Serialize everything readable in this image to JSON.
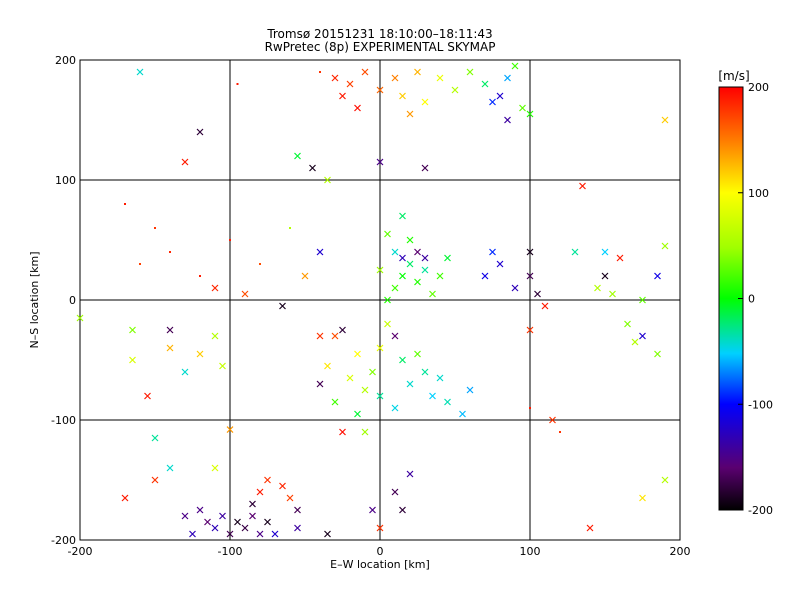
{
  "chart_data": {
    "type": "scatter",
    "title": "Tromsø 20151231 18:10:00–18:11:43",
    "subtitle": "RwPretec (8p) EXPERIMENTAL SKYMAP",
    "xlabel": "E–W location [km]",
    "ylabel": "N–S location [km]",
    "xlim": [
      -200,
      200
    ],
    "ylim": [
      -200,
      200
    ],
    "xticks": [
      -200,
      -100,
      0,
      100,
      200
    ],
    "yticks": [
      -200,
      -100,
      0,
      100,
      200
    ],
    "grid": true,
    "colorbar": {
      "label": "[m/s]",
      "range": [
        -200,
        200
      ],
      "ticks": [
        200,
        100,
        0,
        -100,
        -200
      ],
      "colormap": "rainbow: black (-200) → purple → blue (-100) → cyan → green (0) → yellow (100) → orange → red (200)"
    },
    "markers": [
      "x",
      "dot"
    ],
    "points": [
      {
        "x": -160,
        "y": 190,
        "v": -40,
        "m": "x"
      },
      {
        "x": -120,
        "y": 140,
        "v": -180,
        "m": "x"
      },
      {
        "x": -95,
        "y": 180,
        "v": 190,
        "m": "dot"
      },
      {
        "x": -40,
        "y": 190,
        "v": 180,
        "m": "dot"
      },
      {
        "x": -30,
        "y": 185,
        "v": 185,
        "m": "x"
      },
      {
        "x": -25,
        "y": 170,
        "v": 190,
        "m": "x"
      },
      {
        "x": -20,
        "y": 180,
        "v": 175,
        "m": "x"
      },
      {
        "x": -15,
        "y": 160,
        "v": 195,
        "m": "x"
      },
      {
        "x": -10,
        "y": 190,
        "v": 170,
        "m": "x"
      },
      {
        "x": 0,
        "y": 175,
        "v": 160,
        "m": "x"
      },
      {
        "x": 10,
        "y": 185,
        "v": 150,
        "m": "x"
      },
      {
        "x": 15,
        "y": 170,
        "v": 120,
        "m": "x"
      },
      {
        "x": 20,
        "y": 155,
        "v": 140,
        "m": "x"
      },
      {
        "x": 25,
        "y": 190,
        "v": 130,
        "m": "x"
      },
      {
        "x": 30,
        "y": 165,
        "v": 100,
        "m": "x"
      },
      {
        "x": 40,
        "y": 185,
        "v": 90,
        "m": "x"
      },
      {
        "x": 50,
        "y": 175,
        "v": 60,
        "m": "x"
      },
      {
        "x": 60,
        "y": 190,
        "v": 40,
        "m": "x"
      },
      {
        "x": 70,
        "y": 180,
        "v": -20,
        "m": "x"
      },
      {
        "x": 75,
        "y": 165,
        "v": -90,
        "m": "x"
      },
      {
        "x": 80,
        "y": 170,
        "v": -120,
        "m": "x"
      },
      {
        "x": 85,
        "y": 185,
        "v": -60,
        "m": "x"
      },
      {
        "x": 90,
        "y": 195,
        "v": 20,
        "m": "x"
      },
      {
        "x": 95,
        "y": 160,
        "v": 30,
        "m": "x"
      },
      {
        "x": 100,
        "y": 155,
        "v": 10,
        "m": "x"
      },
      {
        "x": 85,
        "y": 150,
        "v": -140,
        "m": "x"
      },
      {
        "x": 190,
        "y": 150,
        "v": 120,
        "m": "x"
      },
      {
        "x": -130,
        "y": 115,
        "v": 190,
        "m": "x"
      },
      {
        "x": -55,
        "y": 120,
        "v": -10,
        "m": "x"
      },
      {
        "x": -45,
        "y": 110,
        "v": -190,
        "m": "x"
      },
      {
        "x": -35,
        "y": 100,
        "v": 60,
        "m": "x"
      },
      {
        "x": 0,
        "y": 115,
        "v": -150,
        "m": "x"
      },
      {
        "x": 30,
        "y": 110,
        "v": -170,
        "m": "x"
      },
      {
        "x": 135,
        "y": 95,
        "v": 190,
        "m": "x"
      },
      {
        "x": -170,
        "y": 80,
        "v": 190,
        "m": "dot"
      },
      {
        "x": -150,
        "y": 60,
        "v": 180,
        "m": "dot"
      },
      {
        "x": -140,
        "y": 40,
        "v": 185,
        "m": "dot"
      },
      {
        "x": -120,
        "y": 20,
        "v": 190,
        "m": "dot"
      },
      {
        "x": -160,
        "y": 30,
        "v": 175,
        "m": "dot"
      },
      {
        "x": -100,
        "y": 50,
        "v": 190,
        "m": "dot"
      },
      {
        "x": -80,
        "y": 30,
        "v": 170,
        "m": "dot"
      },
      {
        "x": -60,
        "y": 60,
        "v": 60,
        "m": "dot"
      },
      {
        "x": -40,
        "y": 40,
        "v": -120,
        "m": "x"
      },
      {
        "x": -50,
        "y": 20,
        "v": 140,
        "m": "x"
      },
      {
        "x": -110,
        "y": 10,
        "v": 185,
        "m": "x"
      },
      {
        "x": -90,
        "y": 5,
        "v": 170,
        "m": "x"
      },
      {
        "x": -65,
        "y": -5,
        "v": -190,
        "m": "x"
      },
      {
        "x": -140,
        "y": -25,
        "v": -170,
        "m": "x"
      },
      {
        "x": -165,
        "y": -25,
        "v": 40,
        "m": "x"
      },
      {
        "x": -200,
        "y": -15,
        "v": 50,
        "m": "x"
      },
      {
        "x": -110,
        "y": -30,
        "v": 60,
        "m": "x"
      },
      {
        "x": -120,
        "y": -45,
        "v": 120,
        "m": "x"
      },
      {
        "x": -140,
        "y": -40,
        "v": 130,
        "m": "x"
      },
      {
        "x": -165,
        "y": -50,
        "v": 80,
        "m": "x"
      },
      {
        "x": -130,
        "y": -60,
        "v": -40,
        "m": "x"
      },
      {
        "x": -105,
        "y": -55,
        "v": 70,
        "m": "x"
      },
      {
        "x": -155,
        "y": -80,
        "v": 190,
        "m": "x"
      },
      {
        "x": -150,
        "y": -115,
        "v": -30,
        "m": "x"
      },
      {
        "x": -100,
        "y": -108,
        "v": 140,
        "m": "x"
      },
      {
        "x": -40,
        "y": -30,
        "v": 180,
        "m": "x"
      },
      {
        "x": -30,
        "y": -30,
        "v": 170,
        "m": "x"
      },
      {
        "x": -25,
        "y": -25,
        "v": -180,
        "m": "x"
      },
      {
        "x": -15,
        "y": -45,
        "v": 100,
        "m": "x"
      },
      {
        "x": -35,
        "y": -55,
        "v": 110,
        "m": "x"
      },
      {
        "x": -20,
        "y": -65,
        "v": 80,
        "m": "x"
      },
      {
        "x": -40,
        "y": -70,
        "v": -170,
        "m": "x"
      },
      {
        "x": -10,
        "y": -75,
        "v": 60,
        "m": "x"
      },
      {
        "x": -5,
        "y": -60,
        "v": 40,
        "m": "x"
      },
      {
        "x": -30,
        "y": -85,
        "v": 20,
        "m": "x"
      },
      {
        "x": -15,
        "y": -95,
        "v": -10,
        "m": "x"
      },
      {
        "x": -10,
        "y": -110,
        "v": 50,
        "m": "x"
      },
      {
        "x": -25,
        "y": -110,
        "v": 195,
        "m": "x"
      },
      {
        "x": 0,
        "y": -40,
        "v": 90,
        "m": "x"
      },
      {
        "x": 5,
        "y": -20,
        "v": 70,
        "m": "x"
      },
      {
        "x": 10,
        "y": -30,
        "v": -160,
        "m": "x"
      },
      {
        "x": 15,
        "y": -50,
        "v": -20,
        "m": "x"
      },
      {
        "x": 20,
        "y": -70,
        "v": -40,
        "m": "x"
      },
      {
        "x": 25,
        "y": -45,
        "v": 30,
        "m": "x"
      },
      {
        "x": 30,
        "y": -60,
        "v": -30,
        "m": "x"
      },
      {
        "x": 35,
        "y": -80,
        "v": -50,
        "m": "x"
      },
      {
        "x": 40,
        "y": -65,
        "v": -40,
        "m": "x"
      },
      {
        "x": 45,
        "y": -85,
        "v": -35,
        "m": "x"
      },
      {
        "x": 60,
        "y": -75,
        "v": -60,
        "m": "x"
      },
      {
        "x": 55,
        "y": -95,
        "v": -55,
        "m": "x"
      },
      {
        "x": 10,
        "y": -90,
        "v": -45,
        "m": "x"
      },
      {
        "x": 0,
        "y": -80,
        "v": -30,
        "m": "x"
      },
      {
        "x": 5,
        "y": 0,
        "v": 10,
        "m": "x"
      },
      {
        "x": 10,
        "y": 10,
        "v": 20,
        "m": "x"
      },
      {
        "x": 15,
        "y": 20,
        "v": 0,
        "m": "x"
      },
      {
        "x": 20,
        "y": 30,
        "v": -20,
        "m": "x"
      },
      {
        "x": 25,
        "y": 15,
        "v": 10,
        "m": "x"
      },
      {
        "x": 30,
        "y": 25,
        "v": -30,
        "m": "x"
      },
      {
        "x": 35,
        "y": 5,
        "v": 30,
        "m": "x"
      },
      {
        "x": 40,
        "y": 20,
        "v": 20,
        "m": "x"
      },
      {
        "x": 45,
        "y": 35,
        "v": -10,
        "m": "x"
      },
      {
        "x": 10,
        "y": 40,
        "v": -40,
        "m": "x"
      },
      {
        "x": 20,
        "y": 50,
        "v": 10,
        "m": "x"
      },
      {
        "x": 5,
        "y": 55,
        "v": 30,
        "m": "x"
      },
      {
        "x": 15,
        "y": 70,
        "v": -20,
        "m": "x"
      },
      {
        "x": 0,
        "y": 25,
        "v": 50,
        "m": "x"
      },
      {
        "x": 25,
        "y": 40,
        "v": -160,
        "m": "x"
      },
      {
        "x": 30,
        "y": 35,
        "v": -140,
        "m": "x"
      },
      {
        "x": 15,
        "y": 35,
        "v": -130,
        "m": "x"
      },
      {
        "x": 80,
        "y": 30,
        "v": -120,
        "m": "x"
      },
      {
        "x": 70,
        "y": 20,
        "v": -110,
        "m": "x"
      },
      {
        "x": 90,
        "y": 10,
        "v": -130,
        "m": "x"
      },
      {
        "x": 75,
        "y": 40,
        "v": -90,
        "m": "x"
      },
      {
        "x": 100,
        "y": 40,
        "v": -190,
        "m": "x"
      },
      {
        "x": 100,
        "y": 20,
        "v": -170,
        "m": "x"
      },
      {
        "x": 105,
        "y": 5,
        "v": -180,
        "m": "x"
      },
      {
        "x": 110,
        "y": -5,
        "v": 190,
        "m": "x"
      },
      {
        "x": 100,
        "y": -25,
        "v": 180,
        "m": "x"
      },
      {
        "x": 130,
        "y": 40,
        "v": -30,
        "m": "x"
      },
      {
        "x": 150,
        "y": 40,
        "v": -50,
        "m": "x"
      },
      {
        "x": 160,
        "y": 35,
        "v": 190,
        "m": "x"
      },
      {
        "x": 150,
        "y": 20,
        "v": -190,
        "m": "x"
      },
      {
        "x": 145,
        "y": 10,
        "v": 60,
        "m": "x"
      },
      {
        "x": 155,
        "y": 5,
        "v": 50,
        "m": "x"
      },
      {
        "x": 175,
        "y": 0,
        "v": 30,
        "m": "x"
      },
      {
        "x": 165,
        "y": -20,
        "v": 40,
        "m": "x"
      },
      {
        "x": 175,
        "y": -30,
        "v": -120,
        "m": "x"
      },
      {
        "x": 190,
        "y": 45,
        "v": 50,
        "m": "x"
      },
      {
        "x": 185,
        "y": 20,
        "v": -110,
        "m": "x"
      },
      {
        "x": 185,
        "y": -45,
        "v": 40,
        "m": "x"
      },
      {
        "x": 170,
        "y": -35,
        "v": 60,
        "m": "x"
      },
      {
        "x": 115,
        "y": -100,
        "v": 180,
        "m": "x"
      },
      {
        "x": 100,
        "y": -90,
        "v": 190,
        "m": "dot"
      },
      {
        "x": 120,
        "y": -110,
        "v": 180,
        "m": "dot"
      },
      {
        "x": 190,
        "y": -150,
        "v": 60,
        "m": "x"
      },
      {
        "x": 175,
        "y": -165,
        "v": 110,
        "m": "x"
      },
      {
        "x": 140,
        "y": -190,
        "v": 190,
        "m": "x"
      },
      {
        "x": -170,
        "y": -165,
        "v": 190,
        "m": "x"
      },
      {
        "x": -150,
        "y": -150,
        "v": 180,
        "m": "x"
      },
      {
        "x": -140,
        "y": -140,
        "v": -40,
        "m": "x"
      },
      {
        "x": -110,
        "y": -140,
        "v": 80,
        "m": "x"
      },
      {
        "x": -80,
        "y": -160,
        "v": 190,
        "m": "x"
      },
      {
        "x": -75,
        "y": -150,
        "v": 180,
        "m": "x"
      },
      {
        "x": -60,
        "y": -165,
        "v": 175,
        "m": "x"
      },
      {
        "x": -65,
        "y": -155,
        "v": 185,
        "m": "x"
      },
      {
        "x": -85,
        "y": -170,
        "v": -180,
        "m": "x"
      },
      {
        "x": -55,
        "y": -175,
        "v": -170,
        "m": "x"
      },
      {
        "x": -120,
        "y": -175,
        "v": -150,
        "m": "x"
      },
      {
        "x": -115,
        "y": -185,
        "v": -160,
        "m": "x"
      },
      {
        "x": -110,
        "y": -190,
        "v": -130,
        "m": "x"
      },
      {
        "x": -105,
        "y": -180,
        "v": -140,
        "m": "x"
      },
      {
        "x": -100,
        "y": -195,
        "v": -170,
        "m": "x"
      },
      {
        "x": -95,
        "y": -185,
        "v": -190,
        "m": "x"
      },
      {
        "x": -90,
        "y": -190,
        "v": -175,
        "m": "x"
      },
      {
        "x": -85,
        "y": -180,
        "v": -160,
        "m": "x"
      },
      {
        "x": -80,
        "y": -195,
        "v": -150,
        "m": "x"
      },
      {
        "x": -75,
        "y": -185,
        "v": -190,
        "m": "x"
      },
      {
        "x": -70,
        "y": -195,
        "v": -120,
        "m": "x"
      },
      {
        "x": -55,
        "y": -190,
        "v": -140,
        "m": "x"
      },
      {
        "x": -125,
        "y": -195,
        "v": -130,
        "m": "x"
      },
      {
        "x": -130,
        "y": -180,
        "v": -150,
        "m": "x"
      },
      {
        "x": -35,
        "y": -195,
        "v": -190,
        "m": "x"
      },
      {
        "x": 10,
        "y": -160,
        "v": -170,
        "m": "x"
      },
      {
        "x": 15,
        "y": -175,
        "v": -180,
        "m": "x"
      },
      {
        "x": 0,
        "y": -190,
        "v": 180,
        "m": "x"
      },
      {
        "x": -5,
        "y": -175,
        "v": -150,
        "m": "x"
      },
      {
        "x": 20,
        "y": -145,
        "v": -140,
        "m": "x"
      }
    ]
  }
}
